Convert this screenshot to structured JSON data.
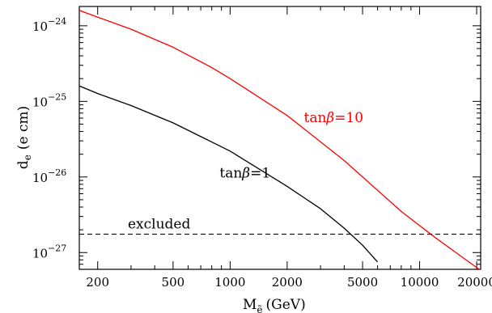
{
  "chart_data": {
    "type": "line",
    "xscale": "log",
    "yscale": "log",
    "xlim": [
      160,
      21000
    ],
    "ylim": [
      6e-28,
      1.8e-24
    ],
    "xlabel": "M",
    "xlabel_sub": "ẽ",
    "xlabel_unit": "(GeV)",
    "ylabel": "d",
    "ylabel_sub": "e",
    "ylabel_unit": "(e cm)",
    "x_ticks": [
      {
        "value": 200,
        "label": "200"
      },
      {
        "value": 500,
        "label": "500"
      },
      {
        "value": 1000,
        "label": "1000"
      },
      {
        "value": 2000,
        "label": "2000"
      },
      {
        "value": 5000,
        "label": "5000"
      },
      {
        "value": 10000,
        "label": "10000"
      },
      {
        "value": 20000,
        "label": "20000"
      }
    ],
    "y_ticks": [
      {
        "value": 1e-24,
        "base": "10",
        "exp": "−24"
      },
      {
        "value": 1e-25,
        "base": "10",
        "exp": "−25"
      },
      {
        "value": 1e-26,
        "base": "10",
        "exp": "−26"
      },
      {
        "value": 1e-27,
        "base": "10",
        "exp": "−27"
      }
    ],
    "series": [
      {
        "label": "tanβ=10",
        "color": "#ff0000",
        "x": [
          160,
          200,
          300,
          500,
          800,
          1000,
          2000,
          4000,
          8000,
          12000,
          16000,
          21000
        ],
        "y": [
          1.6e-24,
          1.3e-24,
          9e-25,
          5.2e-25,
          2.8e-25,
          2e-25,
          6.5e-26,
          1.65e-26,
          3.5e-27,
          1.6e-27,
          9.5e-28,
          5.8e-28
        ]
      },
      {
        "label": "tanβ=1",
        "color": "#000000",
        "x": [
          160,
          200,
          300,
          500,
          800,
          1000,
          2000,
          3000,
          4000,
          5000,
          6000
        ],
        "y": [
          1.6e-25,
          1.27e-25,
          8.8e-26,
          5.2e-26,
          2.9e-26,
          2.2e-26,
          7.5e-27,
          3.8e-27,
          2.1e-27,
          1.25e-27,
          7.5e-28
        ]
      }
    ],
    "reference_line": {
      "label": "excluded",
      "y": 1.75e-27,
      "style": "dashed",
      "color": "#000000"
    },
    "annotations": [
      {
        "text_prefix": "tan",
        "text_greek": "β",
        "text_suffix": "=10",
        "color": "#ff0000",
        "x": 2450,
        "y": 5.3e-26
      },
      {
        "text_prefix": "tan",
        "text_greek": "β",
        "text_suffix": "=1",
        "color": "#000000",
        "x": 880,
        "y": 9.8e-27
      }
    ],
    "grid": false,
    "legend": "none"
  }
}
